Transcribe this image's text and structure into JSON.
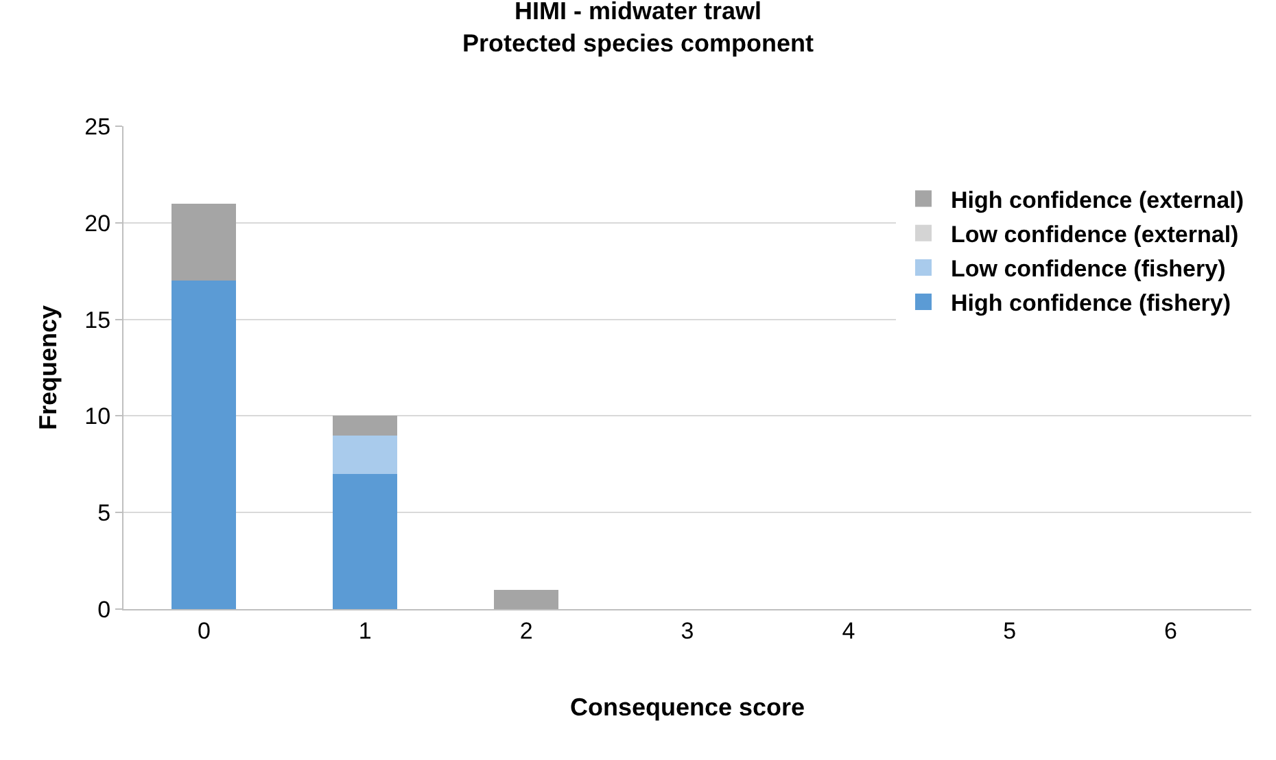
{
  "chart_data": {
    "type": "bar",
    "title": "HIMI - midwater trawl\nProtected species component",
    "xlabel": "Consequence score",
    "ylabel": "Frequency",
    "categories": [
      "0",
      "1",
      "2",
      "3",
      "4",
      "5",
      "6"
    ],
    "stacked": true,
    "series": [
      {
        "name": "High confidence (fishery)",
        "color": "#5b9bd5",
        "values": [
          17,
          7,
          0,
          0,
          0,
          0,
          0
        ]
      },
      {
        "name": "Low confidence (fishery)",
        "color": "#a9cbec",
        "values": [
          0,
          2,
          0,
          0,
          0,
          0,
          0
        ]
      },
      {
        "name": "Low confidence (external)",
        "color": "#d4d4d4",
        "values": [
          0,
          0,
          0,
          0,
          0,
          0,
          0
        ]
      },
      {
        "name": "High confidence (external)",
        "color": "#a5a5a5",
        "values": [
          4,
          1,
          1,
          0,
          0,
          0,
          0
        ]
      }
    ],
    "ylim": [
      0,
      25
    ],
    "yticks": [
      0,
      5,
      10,
      15,
      20,
      25
    ],
    "grid": "y",
    "legend": "top right"
  }
}
